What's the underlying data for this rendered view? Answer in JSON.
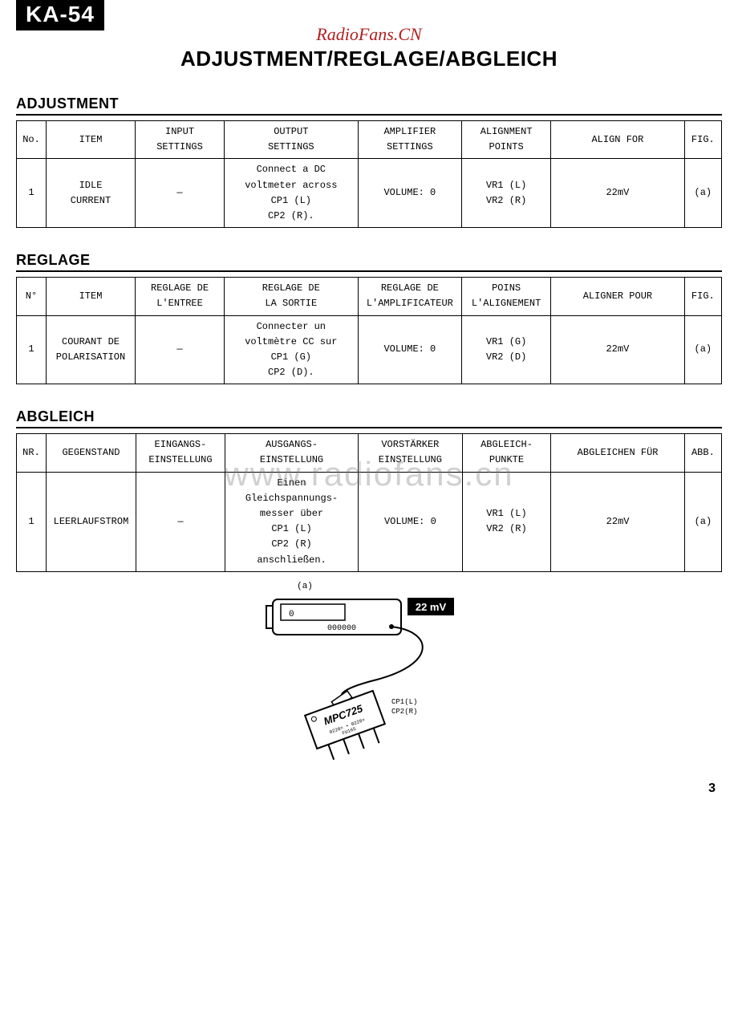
{
  "model_badge": "KA-54",
  "watermark_top": "RadioFans.CN",
  "main_title": "ADJUSTMENT/REGLAGE/ABGLEICH",
  "watermark_mid": "www.radiofans.cn",
  "page_number": "3",
  "adjustment": {
    "title": "ADJUSTMENT",
    "headers": {
      "no": "No.",
      "item": "ITEM",
      "input": "INPUT\nSETTINGS",
      "output": "OUTPUT\nSETTINGS",
      "amp": "AMPLIFIER\nSETTINGS",
      "points": "ALIGNMENT\nPOINTS",
      "for": "ALIGN FOR",
      "fig": "FIG."
    },
    "row": {
      "no": "1",
      "item": "IDLE\nCURRENT",
      "input": "—",
      "output": "Connect a DC\nvoltmeter across\nCP1 (L)\nCP2 (R).",
      "amp": "VOLUME: 0",
      "points": "VR1 (L)\nVR2 (R)",
      "for": "22mV",
      "fig": "(a)"
    }
  },
  "reglage": {
    "title": "REGLAGE",
    "headers": {
      "no": "N°",
      "item": "ITEM",
      "input": "REGLAGE DE\nL'ENTREE",
      "output": "REGLAGE DE\nLA SORTIE",
      "amp": "REGLAGE DE\nL'AMPLIFICATEUR",
      "points": "POINS\nL'ALIGNEMENT",
      "for": "ALIGNER POUR",
      "fig": "FIG."
    },
    "row": {
      "no": "1",
      "item": "COURANT DE\nPOLARISATION",
      "input": "—",
      "output": "Connecter un\nvoltmètre CC sur\nCP1 (G)\nCP2 (D).",
      "amp": "VOLUME: 0",
      "points": "VR1 (G)\nVR2 (D)",
      "for": "22mV",
      "fig": "(a)"
    }
  },
  "abgleich": {
    "title": "ABGLEICH",
    "headers": {
      "no": "NR.",
      "item": "GEGENSTAND",
      "input": "EINGANGS-\nEINSTELLUNG",
      "output": "AUSGANGS-\nEINSTELLUNG",
      "amp": "VORSTÄRKER\nEINSTELLUNG",
      "points": "ABGLEICH-\nPUNKTE",
      "for": "ABGLEICHEN FÜR",
      "fig": "ABB."
    },
    "row": {
      "no": "1",
      "item": "LEERLAUFSTROM",
      "input": "—",
      "output": "Einen\nGleichspannungs-\nmesser über\nCP1 (L)\nCP2 (R)\nanschließen.",
      "amp": "VOLUME: 0",
      "points": "VR1 (L)\nVR2 (R)",
      "for": "22mV",
      "fig": "(a)"
    }
  },
  "figure": {
    "label": "(a)",
    "meter_display": "0",
    "meter_buttons": "000000",
    "badge": "22 mV",
    "chip": "MPC725",
    "chip_sub": "0220× • 0220×\nFU16S",
    "cp1": "CP1(L)",
    "cp2": "CP2(R)"
  }
}
